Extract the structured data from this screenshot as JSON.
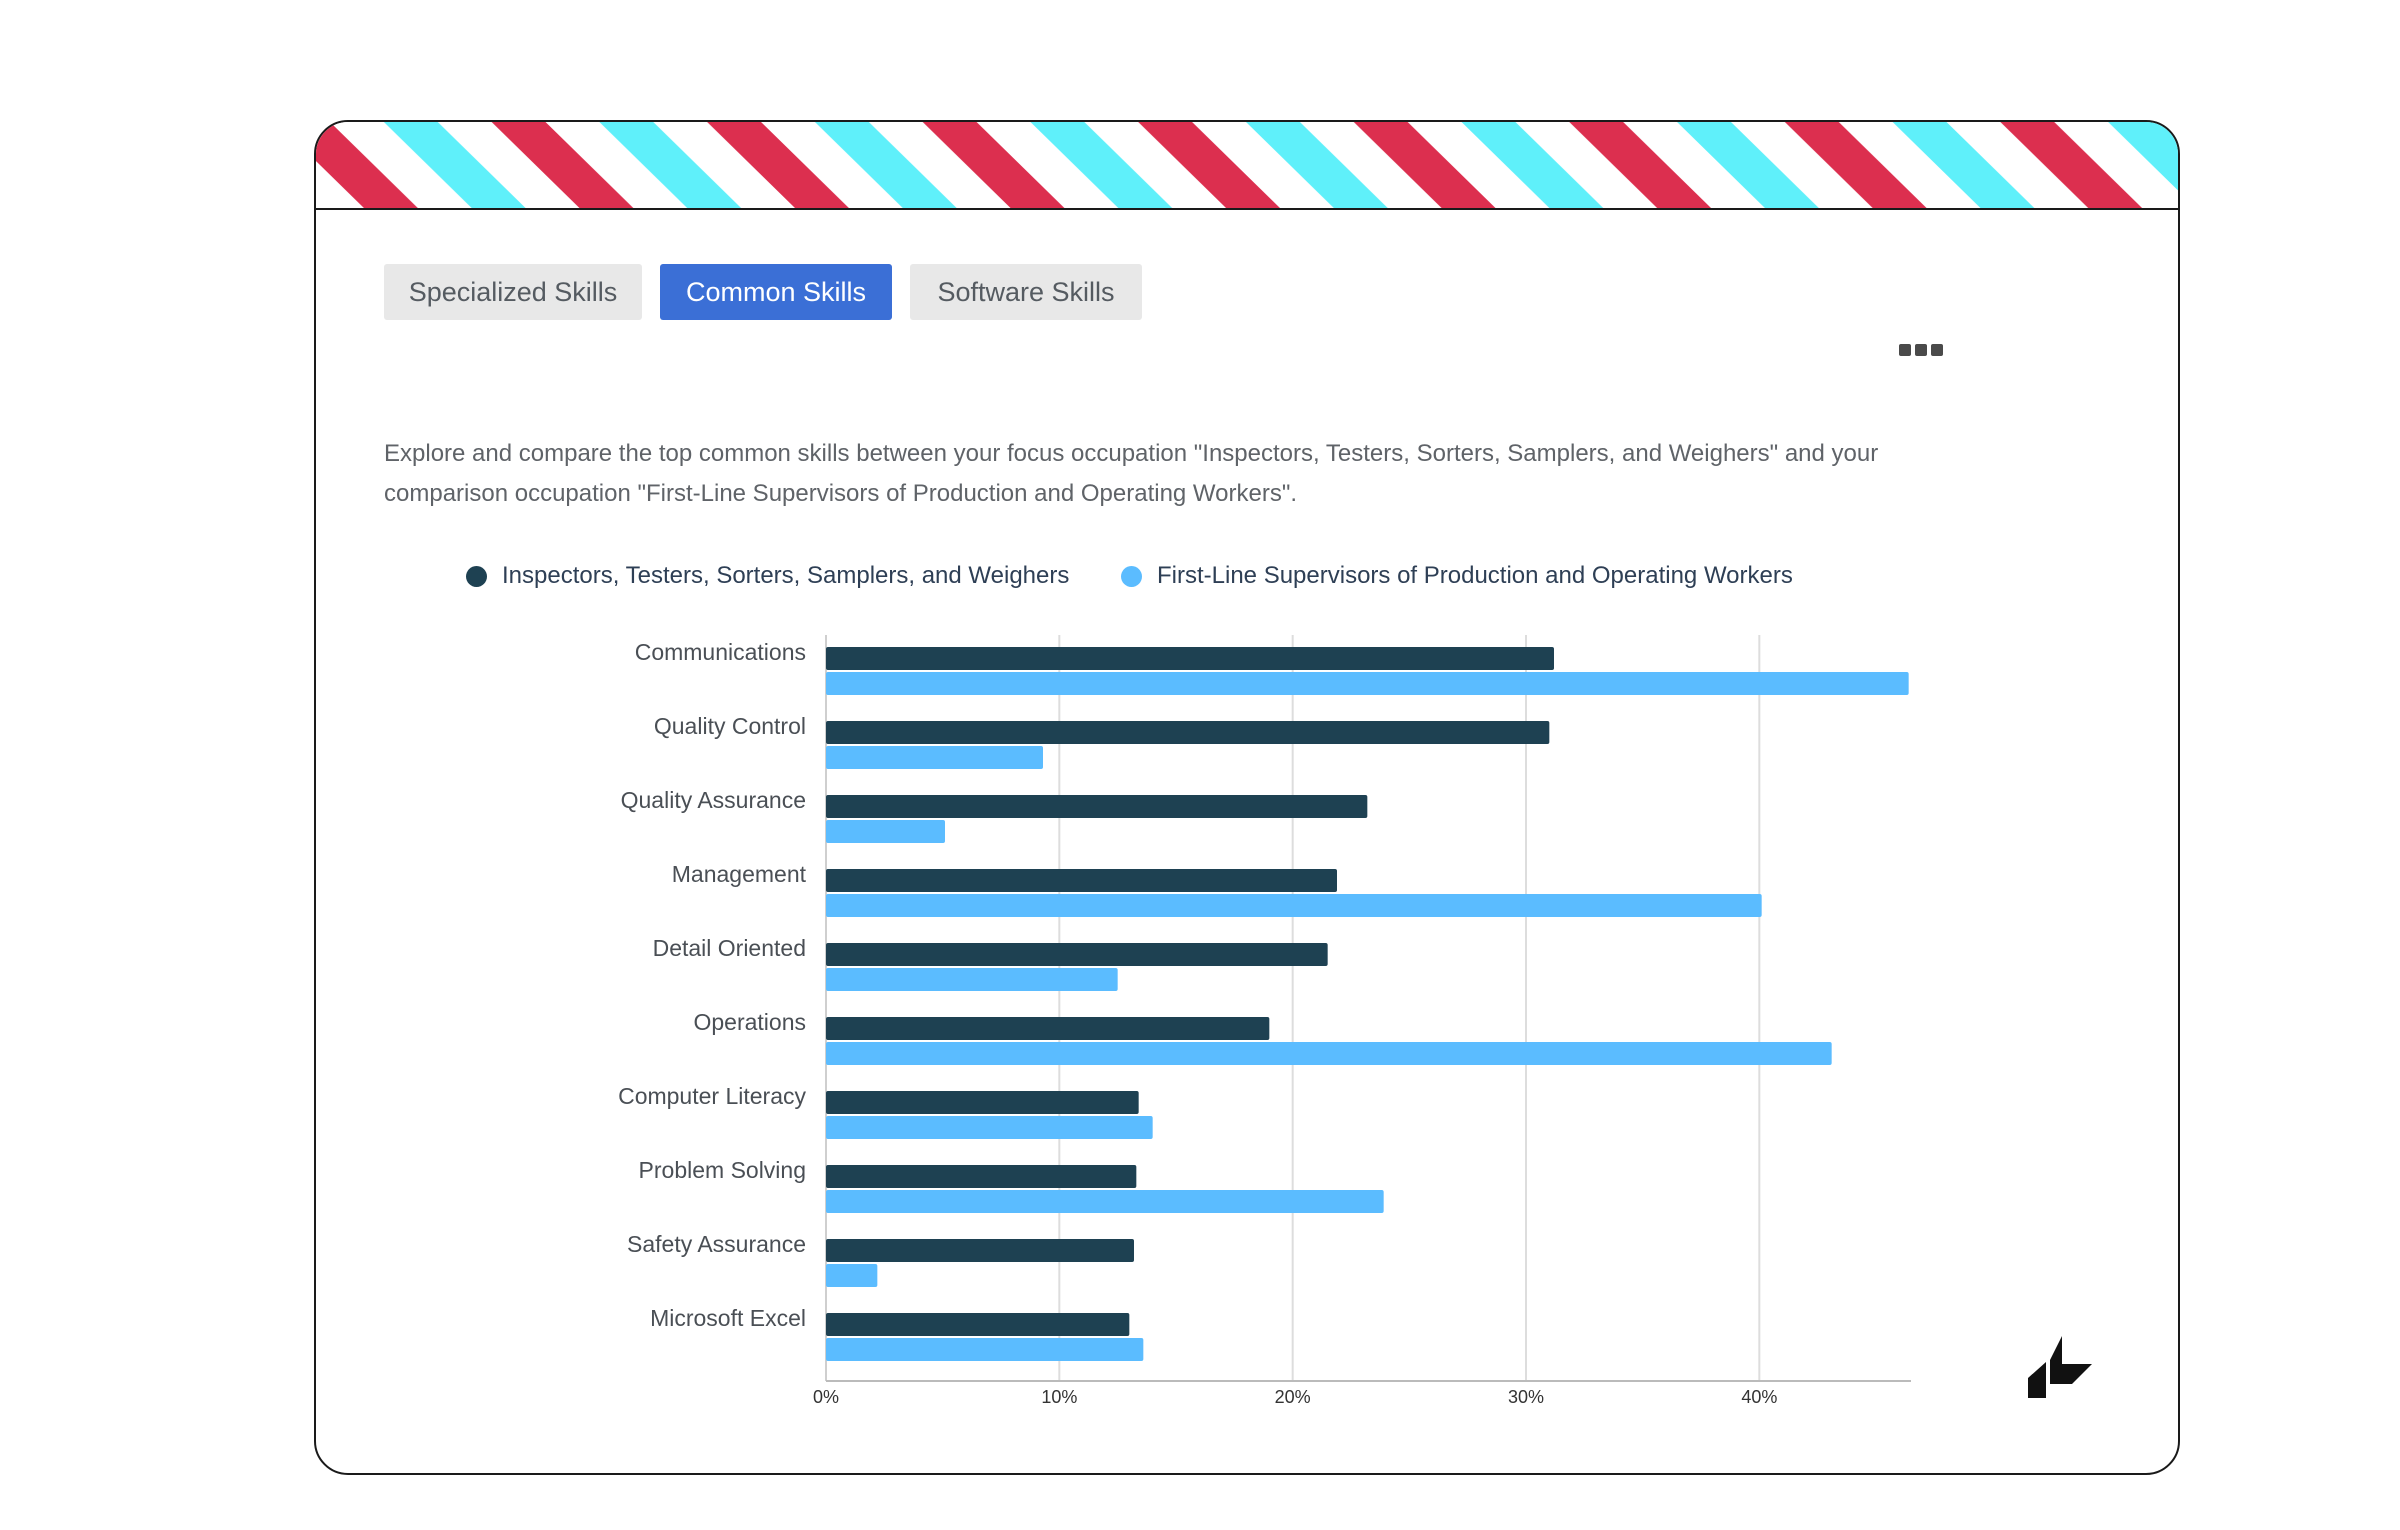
{
  "tabs": [
    {
      "label": "Specialized Skills",
      "active": false
    },
    {
      "label": "Common Skills",
      "active": true
    },
    {
      "label": "Software Skills",
      "active": false
    }
  ],
  "menu_icon": "more-icon",
  "description": "Explore and compare the top common skills between your focus occupation \"Inspectors, Testers, Sorters, Samplers, and Weighers\" and your comparison occupation \"First-Line Supervisors of Production and Operating Workers\".",
  "logo_icon": "brand-logo-icon",
  "colors": {
    "stripe_red": "#dc2f4f",
    "stripe_cyan": "#5ff0fa",
    "series_dark": "#1e4152",
    "series_light": "#5bbcff",
    "tab_active": "#3b6fd6"
  },
  "chart_data": {
    "type": "bar",
    "orientation": "horizontal",
    "categories": [
      "Communications",
      "Quality Control",
      "Quality Assurance",
      "Management",
      "Detail Oriented",
      "Operations",
      "Computer Literacy",
      "Problem Solving",
      "Safety Assurance",
      "Microsoft Excel"
    ],
    "series": [
      {
        "name": "Inspectors, Testers, Sorters, Samplers, and Weighers",
        "color": "#1e4152",
        "values": [
          31.2,
          31.0,
          23.2,
          21.9,
          21.5,
          19.0,
          13.4,
          13.3,
          13.2,
          13.0
        ]
      },
      {
        "name": "First-Line Supervisors of Production and Operating Workers",
        "color": "#5bbcff",
        "values": [
          46.4,
          9.3,
          5.1,
          40.1,
          12.5,
          43.1,
          14.0,
          23.9,
          2.2,
          13.6
        ]
      }
    ],
    "xlim": [
      0,
      46.5
    ],
    "xticks": [
      0,
      10,
      20,
      30,
      40
    ],
    "xtick_labels": [
      "0%",
      "10%",
      "20%",
      "30%",
      "40%"
    ],
    "grid": "vertical",
    "legend_position": "top",
    "title": "",
    "xlabel": "",
    "ylabel": ""
  }
}
